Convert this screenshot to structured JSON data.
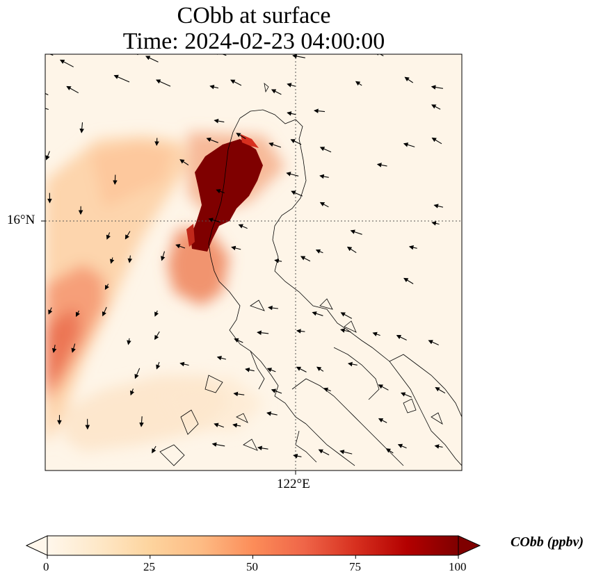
{
  "title_line1": "CObb at surface",
  "title_line2": "Time: 2024-02-23 04:00:00",
  "lat_tick": "16°N",
  "lon_tick": "122°E",
  "colorbar": {
    "label": "CObb (ppbv)",
    "ticks": [
      "0",
      "25",
      "50",
      "75",
      "100"
    ],
    "min": 0,
    "max": 100,
    "extend": "both",
    "cmap": [
      "#fff7ec",
      "#fee8c8",
      "#fdd49e",
      "#fdbb84",
      "#fc8d59",
      "#ef6548",
      "#d7301f",
      "#b30000",
      "#7f0000"
    ]
  },
  "map": {
    "gridlines": "dotted at 16°N and 122°E",
    "features": [
      "coastlines",
      "wind vectors",
      "CObb concentration field"
    ]
  }
}
